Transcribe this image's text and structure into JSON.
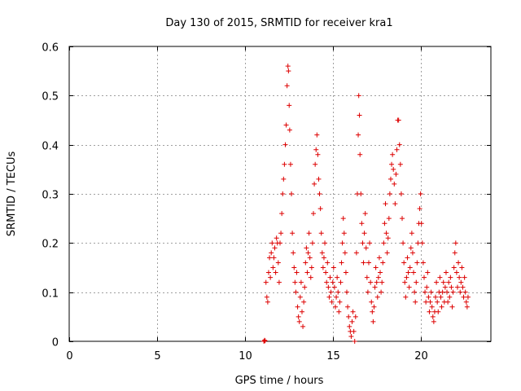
{
  "chart_data": {
    "type": "scatter",
    "title": "Day 130 of 2015, SRMTID for receiver kra1",
    "xlabel": "GPS time / hours",
    "ylabel": "SRMTID / TECUs",
    "xlim": [
      0,
      24
    ],
    "ylim": [
      0,
      0.6
    ],
    "xticks": [
      0,
      5,
      10,
      15,
      20
    ],
    "xtick_labels": [
      "0",
      "5",
      "10",
      "15",
      "20"
    ],
    "yticks": [
      0,
      0.1,
      0.2,
      0.3,
      0.4,
      0.5,
      0.6
    ],
    "ytick_labels": [
      "0",
      "0.1",
      "0.2",
      "0.3",
      "0.4",
      "0.5",
      "0.6"
    ],
    "grid": true,
    "marker": "+",
    "color": "#dd0000",
    "series": [
      {
        "name": "SRMTID",
        "points": [
          [
            11.08,
            0.0
          ],
          [
            11.12,
            0.002
          ],
          [
            11.15,
            0.001
          ],
          [
            11.2,
            0.12
          ],
          [
            11.25,
            0.09
          ],
          [
            11.3,
            0.08
          ],
          [
            11.35,
            0.14
          ],
          [
            11.4,
            0.17
          ],
          [
            11.45,
            0.13
          ],
          [
            11.5,
            0.18
          ],
          [
            11.55,
            0.2
          ],
          [
            11.6,
            0.15
          ],
          [
            11.65,
            0.17
          ],
          [
            11.7,
            0.19
          ],
          [
            11.75,
            0.14
          ],
          [
            11.8,
            0.21
          ],
          [
            11.85,
            0.2
          ],
          [
            11.9,
            0.16
          ],
          [
            11.95,
            0.12
          ],
          [
            12.0,
            0.2
          ],
          [
            12.05,
            0.22
          ],
          [
            12.1,
            0.26
          ],
          [
            12.15,
            0.3
          ],
          [
            12.2,
            0.33
          ],
          [
            12.25,
            0.36
          ],
          [
            12.3,
            0.4
          ],
          [
            12.35,
            0.44
          ],
          [
            12.4,
            0.52
          ],
          [
            12.45,
            0.56
          ],
          [
            12.48,
            0.55
          ],
          [
            12.52,
            0.48
          ],
          [
            12.55,
            0.43
          ],
          [
            12.6,
            0.36
          ],
          [
            12.65,
            0.3
          ],
          [
            12.7,
            0.22
          ],
          [
            12.75,
            0.18
          ],
          [
            12.8,
            0.15
          ],
          [
            12.85,
            0.12
          ],
          [
            12.9,
            0.1
          ],
          [
            12.95,
            0.14
          ],
          [
            13.0,
            0.07
          ],
          [
            13.05,
            0.05
          ],
          [
            13.1,
            0.04
          ],
          [
            13.15,
            0.09
          ],
          [
            13.2,
            0.12
          ],
          [
            13.25,
            0.06
          ],
          [
            13.3,
            0.03
          ],
          [
            13.35,
            0.08
          ],
          [
            13.4,
            0.11
          ],
          [
            13.45,
            0.16
          ],
          [
            13.5,
            0.19
          ],
          [
            13.55,
            0.14
          ],
          [
            13.6,
            0.18
          ],
          [
            13.65,
            0.22
          ],
          [
            13.7,
            0.17
          ],
          [
            13.75,
            0.13
          ],
          [
            13.8,
            0.15
          ],
          [
            13.85,
            0.2
          ],
          [
            13.9,
            0.26
          ],
          [
            13.95,
            0.32
          ],
          [
            14.0,
            0.36
          ],
          [
            14.05,
            0.39
          ],
          [
            14.1,
            0.42
          ],
          [
            14.15,
            0.38
          ],
          [
            14.2,
            0.33
          ],
          [
            14.25,
            0.3
          ],
          [
            14.3,
            0.27
          ],
          [
            14.35,
            0.22
          ],
          [
            14.4,
            0.18
          ],
          [
            14.45,
            0.15
          ],
          [
            14.5,
            0.17
          ],
          [
            14.55,
            0.2
          ],
          [
            14.6,
            0.14
          ],
          [
            14.65,
            0.12
          ],
          [
            14.7,
            0.16
          ],
          [
            14.75,
            0.11
          ],
          [
            14.8,
            0.09
          ],
          [
            14.85,
            0.13
          ],
          [
            14.9,
            0.1
          ],
          [
            14.95,
            0.08
          ],
          [
            15.0,
            0.12
          ],
          [
            15.05,
            0.15
          ],
          [
            15.1,
            0.11
          ],
          [
            15.15,
            0.07
          ],
          [
            15.2,
            0.09
          ],
          [
            15.25,
            0.13
          ],
          [
            15.3,
            0.1
          ],
          [
            15.35,
            0.06
          ],
          [
            15.4,
            0.08
          ],
          [
            15.45,
            0.12
          ],
          [
            15.5,
            0.16
          ],
          [
            15.55,
            0.2
          ],
          [
            15.6,
            0.25
          ],
          [
            15.65,
            0.22
          ],
          [
            15.7,
            0.18
          ],
          [
            15.75,
            0.14
          ],
          [
            15.8,
            0.1
          ],
          [
            15.85,
            0.07
          ],
          [
            15.9,
            0.05
          ],
          [
            15.95,
            0.03
          ],
          [
            16.0,
            0.02
          ],
          [
            16.05,
            0.01
          ],
          [
            16.1,
            0.04
          ],
          [
            16.15,
            0.06
          ],
          [
            16.2,
            0.02
          ],
          [
            16.25,
            0.0
          ],
          [
            16.3,
            0.05
          ],
          [
            16.35,
            0.18
          ],
          [
            16.4,
            0.3
          ],
          [
            16.45,
            0.42
          ],
          [
            16.48,
            0.5
          ],
          [
            16.52,
            0.46
          ],
          [
            16.55,
            0.38
          ],
          [
            16.6,
            0.3
          ],
          [
            16.65,
            0.24
          ],
          [
            16.7,
            0.2
          ],
          [
            16.75,
            0.16
          ],
          [
            16.8,
            0.22
          ],
          [
            16.85,
            0.26
          ],
          [
            16.9,
            0.19
          ],
          [
            16.95,
            0.13
          ],
          [
            17.0,
            0.1
          ],
          [
            17.05,
            0.16
          ],
          [
            17.1,
            0.2
          ],
          [
            17.15,
            0.12
          ],
          [
            17.2,
            0.08
          ],
          [
            17.25,
            0.06
          ],
          [
            17.3,
            0.04
          ],
          [
            17.35,
            0.07
          ],
          [
            17.4,
            0.11
          ],
          [
            17.45,
            0.15
          ],
          [
            17.5,
            0.12
          ],
          [
            17.55,
            0.09
          ],
          [
            17.6,
            0.13
          ],
          [
            17.65,
            0.17
          ],
          [
            17.7,
            0.14
          ],
          [
            17.75,
            0.1
          ],
          [
            17.8,
            0.12
          ],
          [
            17.85,
            0.16
          ],
          [
            17.9,
            0.2
          ],
          [
            17.95,
            0.24
          ],
          [
            18.0,
            0.28
          ],
          [
            18.05,
            0.22
          ],
          [
            18.1,
            0.18
          ],
          [
            18.15,
            0.21
          ],
          [
            18.2,
            0.25
          ],
          [
            18.25,
            0.3
          ],
          [
            18.3,
            0.33
          ],
          [
            18.35,
            0.36
          ],
          [
            18.4,
            0.38
          ],
          [
            18.45,
            0.35
          ],
          [
            18.5,
            0.32
          ],
          [
            18.55,
            0.28
          ],
          [
            18.6,
            0.34
          ],
          [
            18.65,
            0.39
          ],
          [
            18.7,
            0.45
          ],
          [
            18.75,
            0.45
          ],
          [
            18.8,
            0.4
          ],
          [
            18.85,
            0.36
          ],
          [
            18.9,
            0.3
          ],
          [
            18.95,
            0.25
          ],
          [
            19.0,
            0.2
          ],
          [
            19.05,
            0.16
          ],
          [
            19.1,
            0.12
          ],
          [
            19.15,
            0.09
          ],
          [
            19.2,
            0.13
          ],
          [
            19.25,
            0.17
          ],
          [
            19.3,
            0.14
          ],
          [
            19.35,
            0.11
          ],
          [
            19.4,
            0.15
          ],
          [
            19.45,
            0.19
          ],
          [
            19.5,
            0.22
          ],
          [
            19.55,
            0.18
          ],
          [
            19.6,
            0.14
          ],
          [
            19.65,
            0.1
          ],
          [
            19.7,
            0.08
          ],
          [
            19.75,
            0.12
          ],
          [
            19.8,
            0.16
          ],
          [
            19.85,
            0.2
          ],
          [
            19.9,
            0.24
          ],
          [
            19.95,
            0.27
          ],
          [
            20.0,
            0.3
          ],
          [
            20.05,
            0.24
          ],
          [
            20.1,
            0.2
          ],
          [
            20.15,
            0.16
          ],
          [
            20.2,
            0.13
          ],
          [
            20.25,
            0.1
          ],
          [
            20.3,
            0.08
          ],
          [
            20.35,
            0.11
          ],
          [
            20.4,
            0.14
          ],
          [
            20.45,
            0.09
          ],
          [
            20.5,
            0.06
          ],
          [
            20.55,
            0.08
          ],
          [
            20.6,
            0.1
          ],
          [
            20.65,
            0.07
          ],
          [
            20.7,
            0.05
          ],
          [
            20.75,
            0.04
          ],
          [
            20.8,
            0.06
          ],
          [
            20.85,
            0.09
          ],
          [
            20.9,
            0.12
          ],
          [
            20.95,
            0.08
          ],
          [
            21.0,
            0.06
          ],
          [
            21.05,
            0.1
          ],
          [
            21.1,
            0.13
          ],
          [
            21.15,
            0.09
          ],
          [
            21.2,
            0.07
          ],
          [
            21.25,
            0.1
          ],
          [
            21.3,
            0.12
          ],
          [
            21.35,
            0.08
          ],
          [
            21.4,
            0.11
          ],
          [
            21.45,
            0.14
          ],
          [
            21.5,
            0.1
          ],
          [
            21.55,
            0.08
          ],
          [
            21.6,
            0.12
          ],
          [
            21.65,
            0.09
          ],
          [
            21.7,
            0.13
          ],
          [
            21.75,
            0.11
          ],
          [
            21.8,
            0.07
          ],
          [
            21.85,
            0.1
          ],
          [
            21.9,
            0.15
          ],
          [
            21.95,
            0.18
          ],
          [
            22.0,
            0.2
          ],
          [
            22.05,
            0.14
          ],
          [
            22.1,
            0.11
          ],
          [
            22.15,
            0.16
          ],
          [
            22.2,
            0.13
          ],
          [
            22.25,
            0.1
          ],
          [
            22.3,
            0.12
          ],
          [
            22.35,
            0.15
          ],
          [
            22.4,
            0.11
          ],
          [
            22.45,
            0.09
          ],
          [
            22.5,
            0.13
          ],
          [
            22.55,
            0.1
          ],
          [
            22.6,
            0.08
          ],
          [
            22.65,
            0.07
          ],
          [
            22.7,
            0.09
          ]
        ]
      }
    ]
  }
}
